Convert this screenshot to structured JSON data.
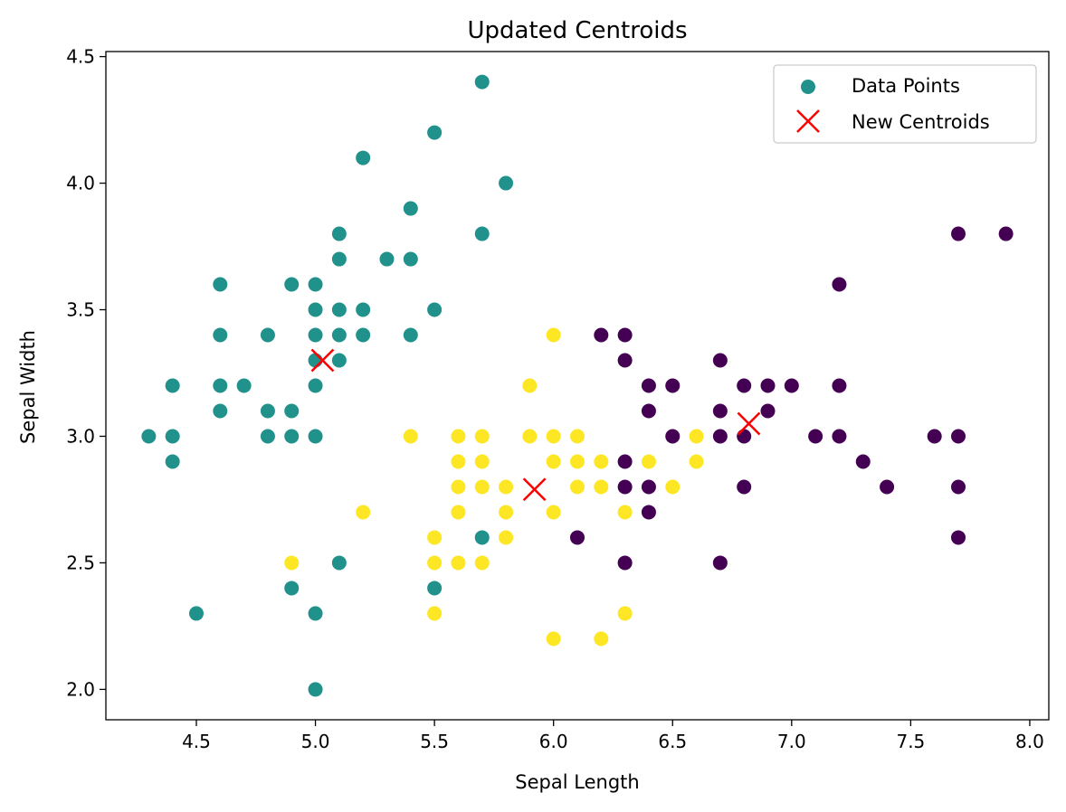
{
  "chart_data": {
    "type": "scatter",
    "title": "Updated Centroids",
    "xlabel": "Sepal Length",
    "ylabel": "Sepal Width",
    "xlim": [
      4.12,
      8.08
    ],
    "ylim": [
      1.88,
      4.52
    ],
    "xticks": [
      "4.5",
      "5.0",
      "5.5",
      "6.0",
      "6.5",
      "7.0",
      "7.5",
      "8.0"
    ],
    "yticks": [
      "2.0",
      "2.5",
      "3.0",
      "3.5",
      "4.0",
      "4.5"
    ],
    "grid": false,
    "legend_position": "top-right",
    "colors": {
      "teal": "#21918c",
      "purple": "#440154",
      "yellow": "#fde725",
      "centroid": "#ff0000"
    },
    "series": [
      {
        "name": "Data Points",
        "marker": "circle",
        "points": [
          [
            5.7,
            4.4
          ],
          [
            5.5,
            4.2
          ],
          [
            5.2,
            4.1
          ],
          [
            5.8,
            4.0
          ],
          [
            5.4,
            3.9
          ],
          [
            5.7,
            3.8
          ],
          [
            5.1,
            3.8
          ],
          [
            5.1,
            3.7
          ],
          [
            5.3,
            3.7
          ],
          [
            5.4,
            3.7
          ],
          [
            4.6,
            3.6
          ],
          [
            4.9,
            3.6
          ],
          [
            5.0,
            3.6
          ],
          [
            5.0,
            3.5
          ],
          [
            5.1,
            3.5
          ],
          [
            5.2,
            3.5
          ],
          [
            5.5,
            3.5
          ],
          [
            4.6,
            3.4
          ],
          [
            4.8,
            3.4
          ],
          [
            5.0,
            3.4
          ],
          [
            5.1,
            3.4
          ],
          [
            5.2,
            3.4
          ],
          [
            5.4,
            3.4
          ],
          [
            5.0,
            3.3
          ],
          [
            5.1,
            3.3
          ],
          [
            4.4,
            3.2
          ],
          [
            4.6,
            3.2
          ],
          [
            4.7,
            3.2
          ],
          [
            5.0,
            3.2
          ],
          [
            4.6,
            3.1
          ],
          [
            4.8,
            3.1
          ],
          [
            4.9,
            3.1
          ],
          [
            4.3,
            3.0
          ],
          [
            4.4,
            3.0
          ],
          [
            4.8,
            3.0
          ],
          [
            4.9,
            3.0
          ],
          [
            5.0,
            3.0
          ],
          [
            4.4,
            2.9
          ],
          [
            5.7,
            2.6
          ],
          [
            5.1,
            2.5
          ],
          [
            4.9,
            2.4
          ],
          [
            5.5,
            2.4
          ],
          [
            4.5,
            2.3
          ],
          [
            5.0,
            2.3
          ],
          [
            5.0,
            2.0
          ],
          [
            6.0,
            3.4
          ],
          [
            5.9,
            3.2
          ],
          [
            5.4,
            3.0
          ],
          [
            5.6,
            3.0
          ],
          [
            5.7,
            3.0
          ],
          [
            5.9,
            3.0
          ],
          [
            6.0,
            3.0
          ],
          [
            6.1,
            3.0
          ],
          [
            6.6,
            3.0
          ],
          [
            5.6,
            2.9
          ],
          [
            5.7,
            2.9
          ],
          [
            6.0,
            2.9
          ],
          [
            6.1,
            2.9
          ],
          [
            6.2,
            2.9
          ],
          [
            6.4,
            2.9
          ],
          [
            6.6,
            2.9
          ],
          [
            5.6,
            2.8
          ],
          [
            5.7,
            2.8
          ],
          [
            5.8,
            2.8
          ],
          [
            6.1,
            2.8
          ],
          [
            6.2,
            2.8
          ],
          [
            6.5,
            2.8
          ],
          [
            5.2,
            2.7
          ],
          [
            5.6,
            2.7
          ],
          [
            5.8,
            2.7
          ],
          [
            6.0,
            2.7
          ],
          [
            6.3,
            2.7
          ],
          [
            5.5,
            2.6
          ],
          [
            5.8,
            2.6
          ],
          [
            4.9,
            2.5
          ],
          [
            5.5,
            2.5
          ],
          [
            5.6,
            2.5
          ],
          [
            5.7,
            2.5
          ],
          [
            5.5,
            2.3
          ],
          [
            6.3,
            2.3
          ],
          [
            6.0,
            2.2
          ],
          [
            6.2,
            2.2
          ],
          [
            7.7,
            3.8
          ],
          [
            7.9,
            3.8
          ],
          [
            7.2,
            3.6
          ],
          [
            6.2,
            3.4
          ],
          [
            6.3,
            3.4
          ],
          [
            6.3,
            3.3
          ],
          [
            6.7,
            3.3
          ],
          [
            6.4,
            3.2
          ],
          [
            6.5,
            3.2
          ],
          [
            6.8,
            3.2
          ],
          [
            6.9,
            3.2
          ],
          [
            7.0,
            3.2
          ],
          [
            7.2,
            3.2
          ],
          [
            6.4,
            3.1
          ],
          [
            6.7,
            3.1
          ],
          [
            6.9,
            3.1
          ],
          [
            6.5,
            3.0
          ],
          [
            6.7,
            3.0
          ],
          [
            6.8,
            3.0
          ],
          [
            7.1,
            3.0
          ],
          [
            7.2,
            3.0
          ],
          [
            7.6,
            3.0
          ],
          [
            7.7,
            3.0
          ],
          [
            6.3,
            2.9
          ],
          [
            7.3,
            2.9
          ],
          [
            6.3,
            2.8
          ],
          [
            6.4,
            2.8
          ],
          [
            6.8,
            2.8
          ],
          [
            7.4,
            2.8
          ],
          [
            7.7,
            2.8
          ],
          [
            6.4,
            2.7
          ],
          [
            6.1,
            2.6
          ],
          [
            7.7,
            2.6
          ],
          [
            6.3,
            2.5
          ],
          [
            6.7,
            2.5
          ]
        ],
        "point_colors": [
          "teal",
          "teal",
          "teal",
          "teal",
          "teal",
          "teal",
          "teal",
          "teal",
          "teal",
          "teal",
          "teal",
          "teal",
          "teal",
          "teal",
          "teal",
          "teal",
          "teal",
          "teal",
          "teal",
          "teal",
          "teal",
          "teal",
          "teal",
          "teal",
          "teal",
          "teal",
          "teal",
          "teal",
          "teal",
          "teal",
          "teal",
          "teal",
          "teal",
          "teal",
          "teal",
          "teal",
          "teal",
          "teal",
          "teal",
          "teal",
          "teal",
          "teal",
          "teal",
          "teal",
          "teal",
          "yellow",
          "yellow",
          "yellow",
          "yellow",
          "yellow",
          "yellow",
          "yellow",
          "yellow",
          "yellow",
          "yellow",
          "yellow",
          "yellow",
          "yellow",
          "yellow",
          "yellow",
          "yellow",
          "yellow",
          "yellow",
          "yellow",
          "yellow",
          "yellow",
          "yellow",
          "yellow",
          "yellow",
          "yellow",
          "yellow",
          "yellow",
          "yellow",
          "yellow",
          "yellow",
          "yellow",
          "yellow",
          "yellow",
          "yellow",
          "yellow",
          "yellow",
          "yellow",
          "purple",
          "purple",
          "purple",
          "purple",
          "purple",
          "purple",
          "purple",
          "purple",
          "purple",
          "purple",
          "purple",
          "purple",
          "purple",
          "purple",
          "purple",
          "purple",
          "purple",
          "purple",
          "purple",
          "purple",
          "purple",
          "purple",
          "purple",
          "purple",
          "purple",
          "purple",
          "purple",
          "purple",
          "purple",
          "purple",
          "purple",
          "purple",
          "purple",
          "purple",
          "purple"
        ]
      },
      {
        "name": "New Centroids",
        "marker": "x",
        "color": "centroid",
        "points": [
          [
            5.03,
            3.3
          ],
          [
            5.92,
            2.79
          ],
          [
            6.82,
            3.05
          ]
        ]
      }
    ]
  }
}
